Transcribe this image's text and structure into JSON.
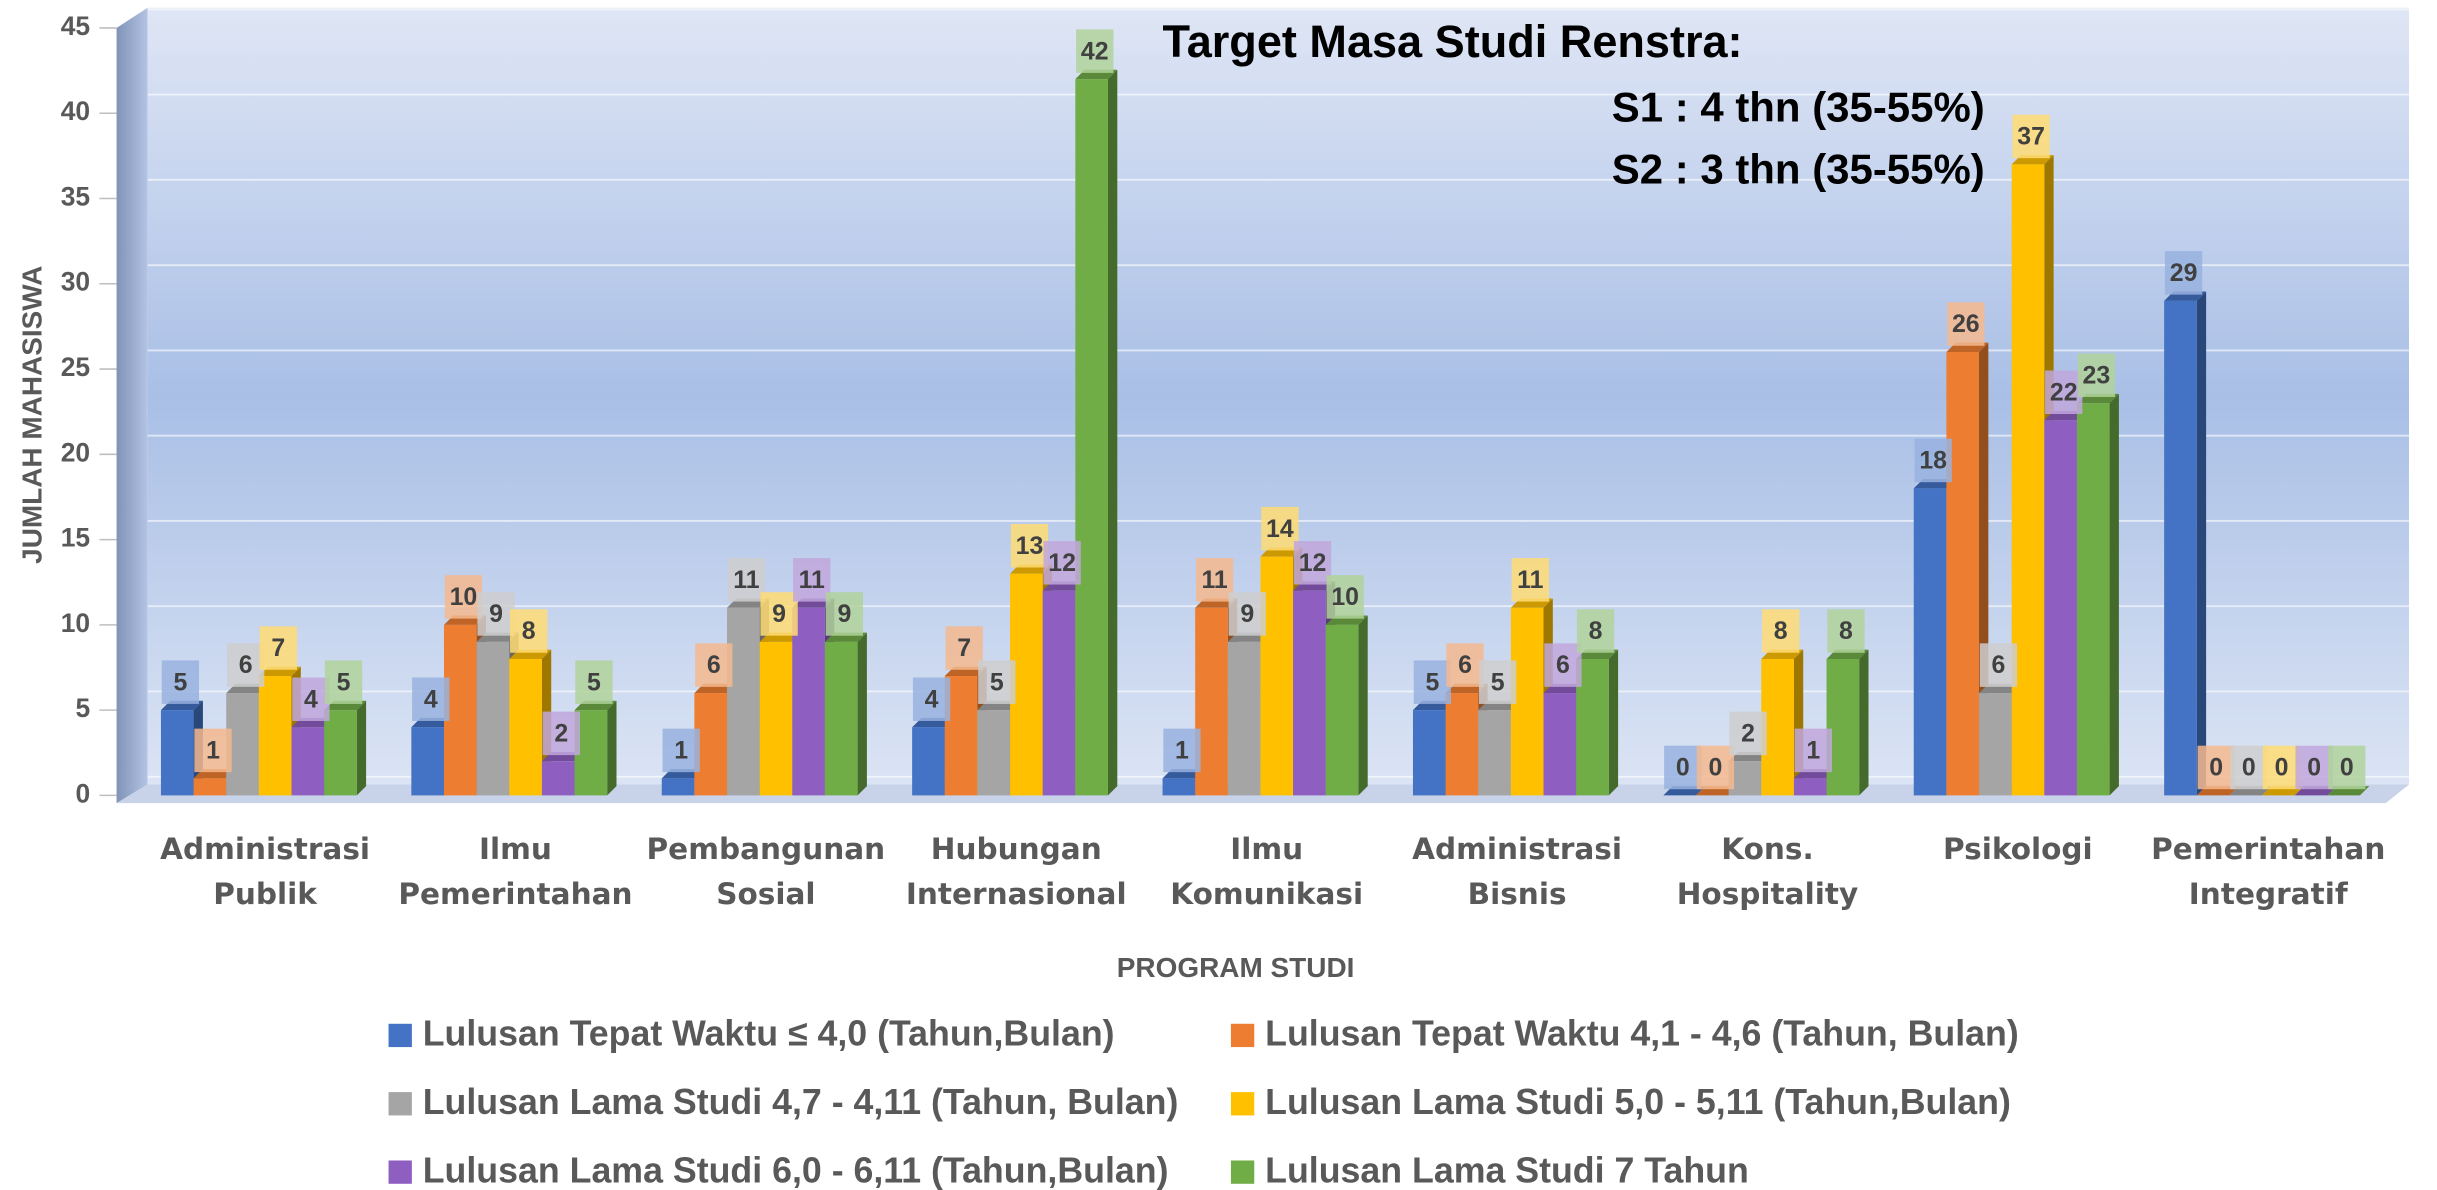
{
  "chart_data": {
    "type": "bar",
    "annotations": [
      "Target Masa Studi Renstra:",
      "S1 : 4 thn (35-55%)",
      "S2 : 3 thn (35-55%)"
    ],
    "x_label": "PROGRAM STUDI",
    "y_label": "JUMLAH MAHASISWA",
    "categories": [
      "Administrasi Publik",
      "Ilmu Pemerintahan",
      "Pembangunan Sosial",
      "Hubungan Internasional",
      "Ilmu Komunikasi",
      "Administrasi Bisnis",
      "Kons. Hospitality",
      "Psikologi",
      "Pemerintahan Integratif"
    ],
    "series": [
      {
        "name": "Lulusan Tepat Waktu ≤ 4,0 (Tahun,Bulan)",
        "color": "#4472c4",
        "values": [
          5,
          4,
          1,
          4,
          1,
          5,
          0,
          18,
          29
        ]
      },
      {
        "name": "Lulusan Tepat Waktu 4,1 - 4,6 (Tahun, Bulan)",
        "color": "#ed7d31",
        "values": [
          1,
          10,
          6,
          7,
          11,
          6,
          0,
          26,
          0
        ]
      },
      {
        "name": "Lulusan Lama Studi 4,7 - 4,11 (Tahun, Bulan)",
        "color": "#a5a5a5",
        "values": [
          6,
          9,
          11,
          5,
          9,
          5,
          2,
          6,
          0
        ]
      },
      {
        "name": "Lulusan Lama Studi 5,0 - 5,11 (Tahun,Bulan)",
        "color": "#ffc000",
        "values": [
          7,
          8,
          9,
          13,
          14,
          11,
          8,
          37,
          0
        ]
      },
      {
        "name": "Lulusan Lama Studi 6,0 - 6,11 (Tahun,Bulan)",
        "color": "#8e5fc0",
        "values": [
          4,
          2,
          11,
          12,
          12,
          6,
          1,
          22,
          0
        ]
      },
      {
        "name": "Lulusan Lama Studi 7 Tahun",
        "color": "#70ad47",
        "values": [
          5,
          5,
          9,
          42,
          10,
          8,
          8,
          23,
          0
        ]
      }
    ],
    "ylim": [
      0,
      45
    ],
    "yticks": [
      0,
      5,
      10,
      15,
      20,
      25,
      30,
      35,
      40,
      45
    ],
    "grid": true
  }
}
